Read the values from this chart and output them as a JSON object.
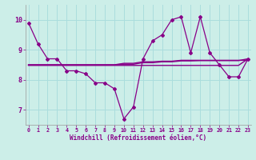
{
  "xlabel": "Windchill (Refroidissement éolien,°C)",
  "bg_color": "#cceee8",
  "line_color": "#880088",
  "grid_color": "#aadddd",
  "x_hours": [
    0,
    1,
    2,
    3,
    4,
    5,
    6,
    7,
    8,
    9,
    10,
    11,
    12,
    13,
    14,
    15,
    16,
    17,
    18,
    19,
    20,
    21,
    22,
    23
  ],
  "main_line": [
    9.9,
    9.2,
    8.7,
    8.7,
    8.3,
    8.3,
    8.2,
    7.9,
    7.9,
    7.7,
    6.7,
    7.1,
    8.7,
    9.3,
    9.5,
    10.0,
    10.1,
    8.9,
    10.1,
    8.9,
    8.5,
    8.1,
    8.1,
    8.7
  ],
  "line2": [
    8.5,
    8.5,
    8.5,
    8.5,
    8.5,
    8.5,
    8.5,
    8.5,
    8.5,
    8.5,
    8.55,
    8.55,
    8.6,
    8.6,
    8.62,
    8.62,
    8.65,
    8.65,
    8.65,
    8.65,
    8.65,
    8.65,
    8.65,
    8.65
  ],
  "line3": [
    8.5,
    8.5,
    8.5,
    8.5,
    8.5,
    8.5,
    8.5,
    8.5,
    8.5,
    8.5,
    8.52,
    8.52,
    8.57,
    8.57,
    8.6,
    8.6,
    8.63,
    8.63,
    8.64,
    8.64,
    8.64,
    8.64,
    8.64,
    8.7
  ],
  "line4": [
    8.48,
    8.48,
    8.48,
    8.48,
    8.48,
    8.48,
    8.48,
    8.48,
    8.48,
    8.48,
    8.48,
    8.48,
    8.48,
    8.48,
    8.48,
    8.48,
    8.48,
    8.48,
    8.48,
    8.48,
    8.48,
    8.48,
    8.48,
    8.7
  ],
  "ylim": [
    6.5,
    10.5
  ],
  "yticks": [
    7,
    8,
    9,
    10
  ],
  "xticks": [
    0,
    1,
    2,
    3,
    4,
    5,
    6,
    7,
    8,
    9,
    10,
    11,
    12,
    13,
    14,
    15,
    16,
    17,
    18,
    19,
    20,
    21,
    22,
    23
  ]
}
